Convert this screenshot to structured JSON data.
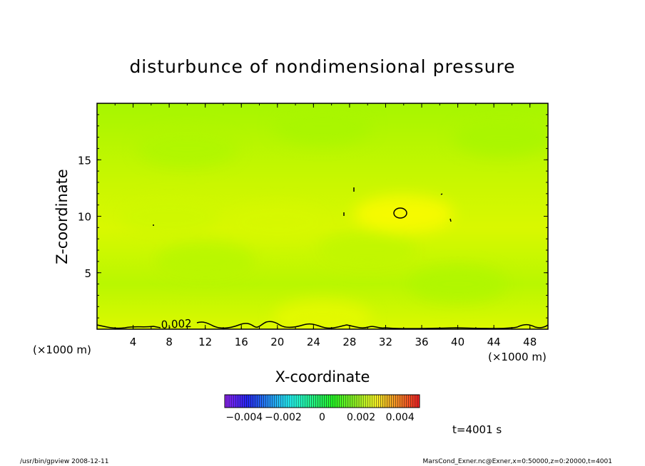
{
  "chart_data": {
    "type": "heatmap",
    "title": "disturbunce of nondimensional pressure",
    "xlabel": "X-coordinate",
    "ylabel": "Z-coordinate",
    "x_unit": "(×1000 m)",
    "y_unit": "(×1000 m)",
    "xlim": [
      0,
      50
    ],
    "ylim": [
      0,
      20
    ],
    "x_ticks": [
      4,
      8,
      12,
      16,
      20,
      24,
      28,
      32,
      36,
      40,
      44,
      48
    ],
    "y_ticks": [
      5,
      10,
      15
    ],
    "contour_label": "0.002",
    "colorbar": {
      "range": [
        -0.005,
        0.005
      ],
      "tick_values": [
        -0.004,
        -0.002,
        0,
        0.002,
        0.004
      ],
      "tick_labels": [
        "−0.004",
        "−0.002",
        "0",
        "0.002",
        "0.004"
      ]
    },
    "time_label": "t=4001 s",
    "fields": [
      {
        "x": 34,
        "z": 10.2,
        "value": 0.0022,
        "note": "local max"
      },
      {
        "x": 8,
        "z": 10,
        "value": 0.0016
      },
      {
        "x": 20,
        "z": 9.5,
        "value": 0.0017
      },
      {
        "x": 30,
        "z": 7,
        "value": 0.0014
      },
      {
        "x": 12,
        "z": 6,
        "value": 0.0013
      },
      {
        "x": 40,
        "z": 4,
        "value": 0.0012
      },
      {
        "x": 25,
        "z": 18,
        "value": 0.0011
      },
      {
        "x": 10,
        "z": 16,
        "value": 0.0012
      },
      {
        "x": 45,
        "z": 17,
        "value": 0.0011
      },
      {
        "x": 25,
        "z": 1,
        "value": 0.0019
      }
    ]
  },
  "footer": {
    "left": "/usr/bin/gpview   2008-12-11",
    "right": "MarsCond_Exner.nc@Exner,x=0:50000,z=0:20000,t=4001"
  },
  "colors": {
    "low": "#9ff600",
    "high": "#fcfc00",
    "contour": "#000000"
  }
}
